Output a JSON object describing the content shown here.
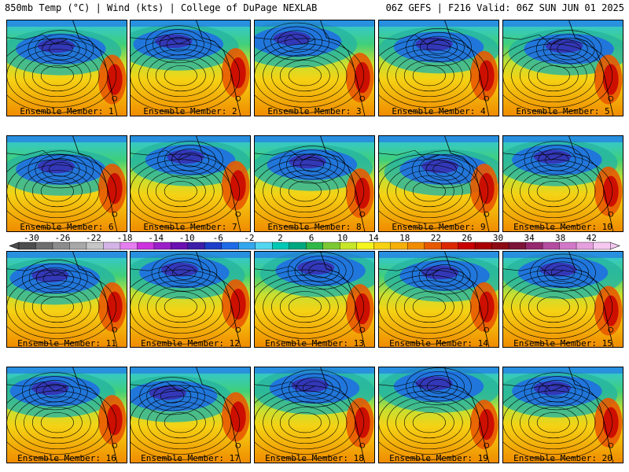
{
  "header": {
    "left": "850mb Temp (°C) | Wind (kts) | College of DuPage NEXLAB",
    "right": "06Z GEFS | F216 Valid: 06Z SUN JUN 01 2025"
  },
  "member_label_prefix": "Ensemble Member: ",
  "members": [
    {
      "id": "1",
      "label": "Ensemble Member: 1",
      "cold_center": [
        0.45,
        0.3
      ],
      "warm": 0.62
    },
    {
      "id": "2",
      "label": "Ensemble Member: 2",
      "cold_center": [
        0.4,
        0.25
      ],
      "warm": 0.55
    },
    {
      "id": "3",
      "label": "Ensemble Member: 3",
      "cold_center": [
        0.35,
        0.22
      ],
      "warm": 0.6
    },
    {
      "id": "4",
      "label": "Ensemble Member: 4",
      "cold_center": [
        0.5,
        0.28
      ],
      "warm": 0.58
    },
    {
      "id": "5",
      "label": "Ensemble Member: 5",
      "cold_center": [
        0.55,
        0.3
      ],
      "warm": 0.62
    },
    {
      "id": "6",
      "label": "Ensemble Member: 6",
      "cold_center": [
        0.45,
        0.35
      ],
      "warm": 0.55
    },
    {
      "id": "7",
      "label": "Ensemble Member: 7",
      "cold_center": [
        0.5,
        0.25
      ],
      "warm": 0.52
    },
    {
      "id": "8",
      "label": "Ensemble Member: 8",
      "cold_center": [
        0.48,
        0.3
      ],
      "warm": 0.6
    },
    {
      "id": "9",
      "label": "Ensemble Member: 9",
      "cold_center": [
        0.55,
        0.35
      ],
      "warm": 0.55
    },
    {
      "id": "10",
      "label": "Ensemble Member: 10",
      "cold_center": [
        0.45,
        0.25
      ],
      "warm": 0.58
    },
    {
      "id": "11",
      "label": "Ensemble Member: 11",
      "cold_center": [
        0.4,
        0.28
      ],
      "warm": 0.58
    },
    {
      "id": "12",
      "label": "Ensemble Member: 12",
      "cold_center": [
        0.45,
        0.22
      ],
      "warm": 0.55
    },
    {
      "id": "13",
      "label": "Ensemble Member: 13",
      "cold_center": [
        0.55,
        0.2
      ],
      "warm": 0.6
    },
    {
      "id": "14",
      "label": "Ensemble Member: 14",
      "cold_center": [
        0.55,
        0.25
      ],
      "warm": 0.58
    },
    {
      "id": "15",
      "label": "Ensemble Member: 15",
      "cold_center": [
        0.5,
        0.22
      ],
      "warm": 0.62
    },
    {
      "id": "16",
      "label": "Ensemble Member: 16",
      "cold_center": [
        0.4,
        0.25
      ],
      "warm": 0.55
    },
    {
      "id": "17",
      "label": "Ensemble Member: 17",
      "cold_center": [
        0.35,
        0.3
      ],
      "warm": 0.52
    },
    {
      "id": "18",
      "label": "Ensemble Member: 18",
      "cold_center": [
        0.5,
        0.22
      ],
      "warm": 0.58
    },
    {
      "id": "19",
      "label": "Ensemble Member: 19",
      "cold_center": [
        0.5,
        0.2
      ],
      "warm": 0.6
    },
    {
      "id": "20",
      "label": "Ensemble Member: 20",
      "cold_center": [
        0.45,
        0.25
      ],
      "warm": 0.58
    }
  ],
  "colorbar": {
    "labels": [
      "-30",
      "-26",
      "-22",
      "-18",
      "-14",
      "-10",
      "-6",
      "-2",
      "2",
      "6",
      "10",
      "14",
      "18",
      "22",
      "26",
      "30",
      "34",
      "38",
      "42"
    ],
    "colors": [
      "#4d4d4d",
      "#6e6e6e",
      "#8c8c8c",
      "#a8a8a8",
      "#c6c6c6",
      "#d4b4e6",
      "#e67ef0",
      "#cc33dd",
      "#9a1fc8",
      "#6a0fb0",
      "#3c1ea8",
      "#1c3ec8",
      "#1f6ae6",
      "#33a6ee",
      "#52d6f0",
      "#00c8b4",
      "#00a880",
      "#2fb848",
      "#7cc832",
      "#c8e628",
      "#f5f51e",
      "#f5d214",
      "#f5b00a",
      "#f08c00",
      "#e85a00",
      "#dc2800",
      "#c80000",
      "#a80000",
      "#8c0a14",
      "#7c1438",
      "#96286e",
      "#b44ca0",
      "#d278c8",
      "#e6a0de",
      "#f5c8f0"
    ]
  }
}
